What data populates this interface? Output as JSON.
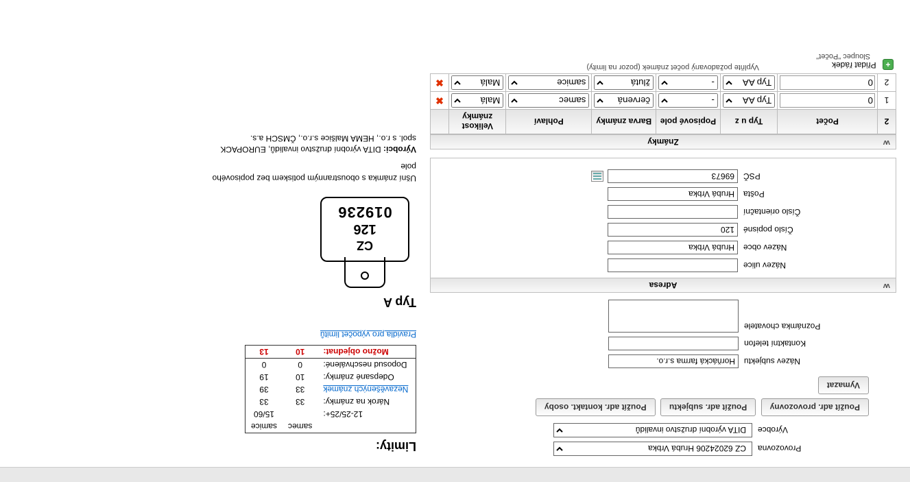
{
  "topform": {
    "prov_label": "Provozovna",
    "prov_value": "CZ 62024206 Hrubá Vrbka",
    "vyr_label": "Výrobce",
    "vyr_value": "DITA výrobní družstvo invalidů"
  },
  "buttons": {
    "adrprov": "Použít adr. provozovny",
    "adrsubj": "Použít adr. subjektu",
    "adrkont": "Použít adr. kontakt. osoby",
    "clear": "Vymazat"
  },
  "subject": {
    "name_label": "Název subjektu",
    "name_value": "Horňácká farma s.r.o.",
    "phone_label": "Kontaktní telefon",
    "phone_value": "",
    "note_label": "Poznámka chovatele",
    "note_value": ""
  },
  "adr": {
    "section": "Adresa",
    "street_label": "Název ulice",
    "street_value": "",
    "obec_label": "Název obce",
    "obec_value": "Hrubá Vrbka",
    "cp_label": "Číslo popisné",
    "cp_value": "120",
    "co_label": "Číslo orientační",
    "co_value": "",
    "posta_label": "Pošta",
    "posta_value": "Hrubá Vrbka",
    "psc_label": "PSČ",
    "psc_value": "69673"
  },
  "zn": {
    "section": "Známky",
    "cols": {
      "idx": "2",
      "pocet": "Počet",
      "typ": "Typ u z",
      "pole": "Popisové pole",
      "barva": "Barva známky",
      "pohl": "Pohlaví",
      "vel": "Velikost známky",
      "del": ""
    },
    "rows": [
      {
        "idx": "1",
        "pocet": "0",
        "typ": "Typ AA",
        "pole": "-",
        "barva": "červená",
        "pohl": "samec",
        "vel": "Malá"
      },
      {
        "idx": "2",
        "pocet": "0",
        "typ": "Typ AA",
        "pole": "-",
        "barva": "žlutá",
        "pohl": "samice",
        "vel": "Malá"
      }
    ],
    "addrow": "Přidat řádek",
    "hint_top": "Vyplňte požadovaný počet známek (pozor na limity)",
    "hint_bot": "Sloupec \"Počet\""
  },
  "lim": {
    "title": "Limity:",
    "colA": "samec",
    "colB": "samice",
    "r1_label": "12-25/25+:",
    "r1_b": "15/60",
    "r2_label": "Nárok na známky:",
    "r2_a": "33",
    "r2_b": "33",
    "r3_label": "Nezavěšených známek",
    "r3_a": "33",
    "r3_b": "39",
    "r4_label": "Odepsané známky:",
    "r4_a": "10",
    "r4_b": "19",
    "r5_label": "Doposud neschválené:",
    "r5_a": "0",
    "r5_b": "0",
    "r6_label": "Možno objednat:",
    "r6_a": "10",
    "r6_b": "13",
    "rules_link": "Pravidla pro výpočet limitů"
  },
  "type": {
    "title": "Typ A",
    "tag_cz": "CZ",
    "tag_mid": "126",
    "tag_num": "019236",
    "desc1": "Ušní známka s oboustranným potiskem bez popisového pole",
    "desc2": "Výrobci:",
    "desc3": "DITA výrobní družstvo invalidů, EUROPACK spol. s r.o., HEMA Malšice s.r.o., ČMSCH a.s."
  }
}
